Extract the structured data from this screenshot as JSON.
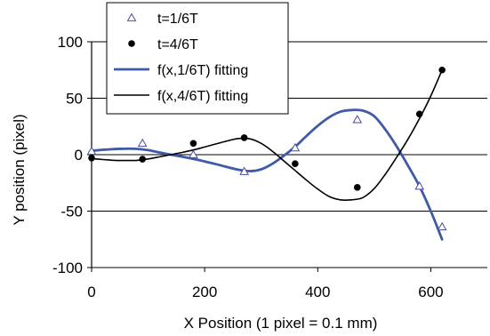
{
  "chart_data": {
    "type": "scatter",
    "xlabel": "X Position (1 pixel = 0.1 mm)",
    "ylabel": "Y position (pixel)",
    "xlim": [
      0,
      700
    ],
    "ylim": [
      -100,
      100
    ],
    "x_ticks": [
      0,
      200,
      400,
      600
    ],
    "y_ticks": [
      -100,
      -50,
      0,
      50,
      100
    ],
    "x_tick_labels": [
      "0",
      "200",
      "400",
      "600"
    ],
    "y_tick_labels": [
      "-100",
      "-50",
      "0",
      "50",
      "100"
    ],
    "grid": "horizontal",
    "legend_position": "top-left",
    "series": [
      {
        "name": "t=1/6T",
        "kind": "points",
        "marker": "open-triangle",
        "color": "#4a4aa0",
        "x": [
          0,
          90,
          180,
          270,
          360,
          470,
          580,
          620
        ],
        "y": [
          3,
          10,
          0,
          -15,
          6,
          31,
          -28,
          -64
        ]
      },
      {
        "name": "t=4/6T",
        "kind": "points",
        "marker": "filled-circle",
        "color": "#000000",
        "x": [
          0,
          90,
          180,
          270,
          360,
          470,
          580,
          620
        ],
        "y": [
          -3,
          -4,
          10,
          15,
          -8,
          -29,
          36,
          75
        ]
      },
      {
        "name": "f(x,1/6T) fitting",
        "kind": "line",
        "color": "#3f5aa8",
        "x": [
          0,
          20,
          40,
          60,
          80,
          100,
          120,
          140,
          160,
          180,
          200,
          220,
          240,
          260,
          280,
          300,
          320,
          340,
          360,
          380,
          400,
          420,
          440,
          460,
          480,
          500,
          520,
          540,
          560,
          580,
          600,
          620
        ],
        "y": [
          3.5,
          4.3,
          5.0,
          5.3,
          5.1,
          4.0,
          2.0,
          0.0,
          -1.8,
          -3.8,
          -6.0,
          -8.4,
          -11.0,
          -13.4,
          -14.6,
          -13.0,
          -8.0,
          -1.0,
          7.0,
          16.5,
          25.5,
          33.0,
          38.0,
          39.5,
          39.0,
          34.0,
          22.0,
          7.0,
          -10.0,
          -28.0,
          -50.0,
          -75.0
        ]
      },
      {
        "name": "f(x,4/6T) fitting",
        "kind": "line",
        "color": "#000000",
        "x": [
          0,
          20,
          40,
          60,
          80,
          100,
          120,
          140,
          160,
          180,
          200,
          220,
          240,
          260,
          280,
          300,
          320,
          340,
          360,
          380,
          400,
          420,
          440,
          460,
          480,
          500,
          520,
          540,
          560,
          580,
          600,
          620
        ],
        "y": [
          -3.5,
          -4.3,
          -5.0,
          -5.2,
          -5.0,
          -3.8,
          -2.0,
          0.0,
          2.0,
          4.2,
          6.8,
          9.5,
          12.2,
          14.3,
          14.0,
          10.0,
          3.0,
          -5.5,
          -14.0,
          -22.5,
          -30.5,
          -37.0,
          -40.0,
          -40.0,
          -38.0,
          -30.0,
          -17.0,
          -2.0,
          14.0,
          32.0,
          52.0,
          75.0
        ]
      }
    ]
  }
}
